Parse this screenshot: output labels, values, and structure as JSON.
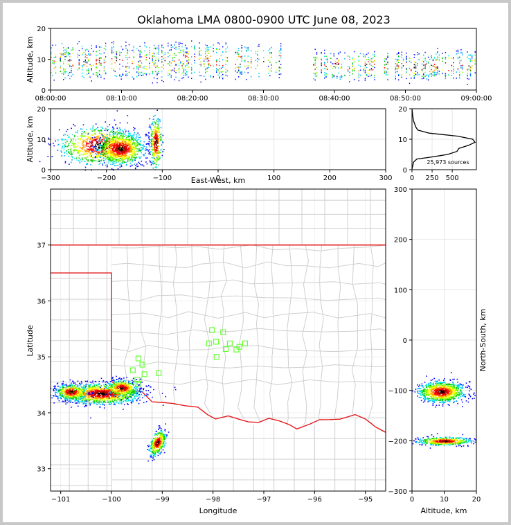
{
  "chart_data": [
    {
      "type": "heatmap",
      "panel": "time-altitude",
      "title": "Oklahoma LMA 0800-0900 UTC June 08, 2023",
      "ylabel": "Altitude, km",
      "xlabel": "",
      "ylim": [
        0,
        20
      ],
      "yticks": [
        0,
        10,
        20
      ],
      "xticks": [
        "08:00:00",
        "08:10:00",
        "08:20:00",
        "08:30:00",
        "08:40:00",
        "08:50:00",
        "09:00:00"
      ],
      "activity_minutes": [
        {
          "start": 0,
          "end": 25,
          "alt_low": 4,
          "alt_high": 15
        },
        {
          "start": 26,
          "end": 33,
          "alt_low": 5,
          "alt_high": 14
        },
        {
          "start": 37,
          "end": 46,
          "alt_low": 4,
          "alt_high": 12
        },
        {
          "start": 47,
          "end": 60,
          "alt_low": 4,
          "alt_high": 12
        }
      ]
    },
    {
      "type": "heatmap",
      "panel": "east-west-altitude",
      "xlabel": "East-West, km",
      "ylabel": "Altitude, km",
      "xlim": [
        -300,
        300
      ],
      "ylim": [
        0,
        20
      ],
      "xticks": [
        -300,
        -200,
        -100,
        0,
        100,
        200,
        300
      ],
      "yticks": [
        0,
        10,
        20
      ],
      "clusters": [
        {
          "x": -212,
          "alt": 8,
          "sx": 35,
          "sa": 3
        },
        {
          "x": -175,
          "alt": 7,
          "sx": 20,
          "sa": 2.5
        },
        {
          "x": -112,
          "alt": 9,
          "sx": 5,
          "sa": 4
        }
      ]
    },
    {
      "type": "line",
      "panel": "altitude-histogram",
      "annotation": "25,973 sources",
      "xlim": [
        0,
        800
      ],
      "ylim": [
        0,
        20
      ],
      "xticks": [
        0,
        250,
        500
      ],
      "yticks": [
        0,
        10,
        20
      ],
      "profile": [
        {
          "alt": 0.2,
          "count": 0
        },
        {
          "alt": 2.5,
          "count": 20
        },
        {
          "alt": 3.5,
          "count": 60
        },
        {
          "alt": 4.0,
          "count": 200
        },
        {
          "alt": 5.0,
          "count": 440
        },
        {
          "alt": 6.0,
          "count": 560
        },
        {
          "alt": 7.0,
          "count": 580
        },
        {
          "alt": 8.0,
          "count": 700
        },
        {
          "alt": 9.0,
          "count": 780
        },
        {
          "alt": 10.0,
          "count": 760
        },
        {
          "alt": 11.0,
          "count": 560
        },
        {
          "alt": 12.0,
          "count": 220
        },
        {
          "alt": 13.0,
          "count": 80
        },
        {
          "alt": 14.0,
          "count": 40
        },
        {
          "alt": 16.0,
          "count": 20
        },
        {
          "alt": 18.0,
          "count": 8
        },
        {
          "alt": 20.0,
          "count": 0
        }
      ]
    },
    {
      "type": "scatter",
      "panel": "plan-view",
      "xlabel": "Longitude",
      "ylabel": "Latitude",
      "xlim": [
        -101.2,
        -94.6
      ],
      "ylim": [
        32.6,
        38.0
      ],
      "xticks": [
        -101,
        -100,
        -99,
        -98,
        -97,
        -96,
        -95
      ],
      "yticks": [
        33,
        34,
        35,
        36,
        37
      ],
      "stations": [
        {
          "lon": -99.47,
          "lat": 34.97
        },
        {
          "lon": -99.39,
          "lat": 34.86
        },
        {
          "lon": -99.58,
          "lat": 34.76
        },
        {
          "lon": -99.35,
          "lat": 34.69
        },
        {
          "lon": -99.49,
          "lat": 34.59
        },
        {
          "lon": -99.47,
          "lat": 34.52
        },
        {
          "lon": -99.07,
          "lat": 34.71
        },
        {
          "lon": -98.02,
          "lat": 35.48
        },
        {
          "lon": -97.8,
          "lat": 35.44
        },
        {
          "lon": -98.08,
          "lat": 35.24
        },
        {
          "lon": -97.94,
          "lat": 35.27
        },
        {
          "lon": -97.67,
          "lat": 35.24
        },
        {
          "lon": -97.37,
          "lat": 35.24
        },
        {
          "lon": -97.48,
          "lat": 35.18
        },
        {
          "lon": -97.75,
          "lat": 35.14
        },
        {
          "lon": -97.54,
          "lat": 35.13
        },
        {
          "lon": -97.93,
          "lat": 35.0
        }
      ],
      "source_clusters": [
        {
          "lon": -100.2,
          "lat": 34.35,
          "slon": 0.38,
          "slat": 0.09
        },
        {
          "lon": -100.8,
          "lat": 34.38,
          "slon": 0.15,
          "slat": 0.07
        },
        {
          "lon": -99.8,
          "lat": 34.45,
          "slon": 0.15,
          "slat": 0.07
        },
        {
          "lon": -99.1,
          "lat": 33.47,
          "slon": 0.08,
          "slat": 0.1
        }
      ]
    },
    {
      "type": "heatmap",
      "panel": "altitude-north-south",
      "xlabel": "Altitude, km",
      "ylabel": "North-South, km",
      "xlim": [
        0,
        20
      ],
      "ylim": [
        -300,
        300
      ],
      "xticks": [
        0,
        10,
        20
      ],
      "yticks": [
        -300,
        -200,
        -100,
        0,
        100,
        200,
        300
      ],
      "clusters": [
        {
          "alt": 9,
          "y": -102,
          "sa": 3.5,
          "sy": 10
        },
        {
          "alt": 10,
          "y": -200,
          "sa": 4,
          "sy": 4
        }
      ]
    }
  ]
}
